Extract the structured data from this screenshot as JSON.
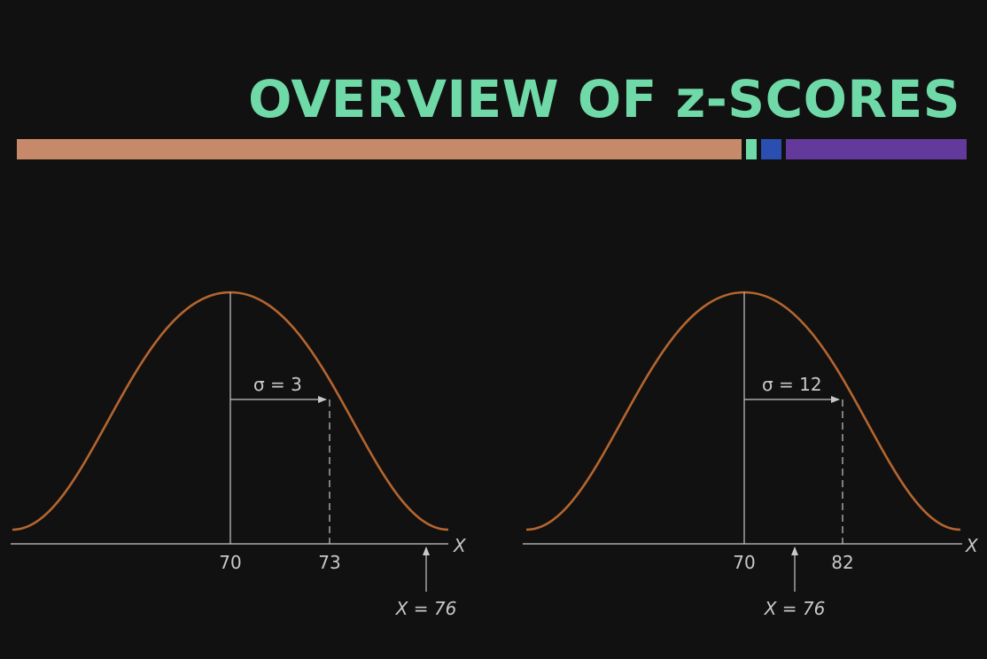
{
  "title": "OVERVIEW OF z-SCORES",
  "colors": {
    "background": "#111111",
    "title": "#6fd9a7",
    "bar_main": "#c6896a",
    "bar_green": "#6fd9a7",
    "bar_blue": "#2b4fb0",
    "bar_purple": "#64399c",
    "curve": "#b5652f",
    "line": "#c8c8c8",
    "text": "#c8c8c8"
  },
  "diagrams": [
    {
      "sigma_label": "σ = 3",
      "mean_label": "70",
      "sd_label": "73",
      "x_value_label": "X = 76",
      "axis_label": "X"
    },
    {
      "sigma_label": "σ = 12",
      "mean_label": "70",
      "sd_label": "82",
      "x_value_label": "X = 76",
      "axis_label": "X"
    }
  ]
}
